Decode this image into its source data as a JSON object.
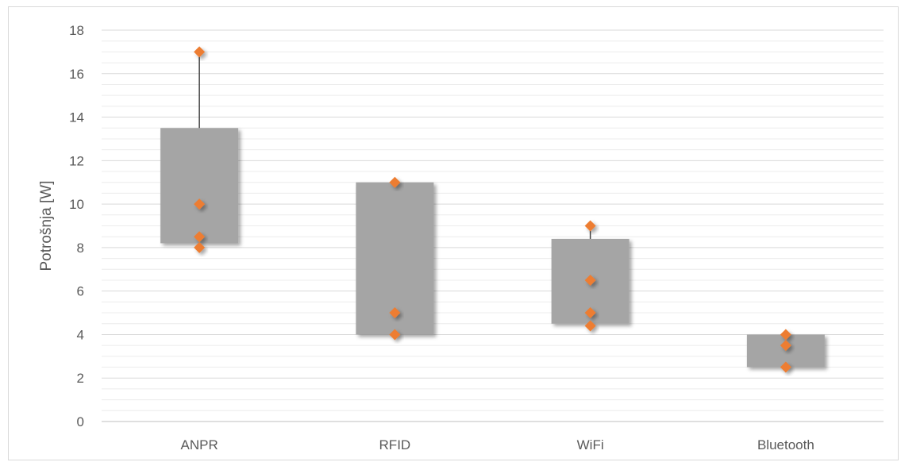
{
  "chart_data": {
    "type": "box",
    "title": "",
    "xlabel": "",
    "ylabel": "Potrošnja [W]",
    "ylim": [
      0,
      18
    ],
    "ytick_step": 2,
    "yminor_step": 0.5,
    "grid": true,
    "legend": "none",
    "categories": [
      "ANPR",
      "RFID",
      "WiFi",
      "Bluetooth"
    ],
    "boxes": [
      {
        "category": "ANPR",
        "low": 8.2,
        "high": 13.5,
        "whisker_max": 17
      },
      {
        "category": "RFID",
        "low": 4.0,
        "high": 11.0,
        "whisker_max": 11
      },
      {
        "category": "WiFi",
        "low": 4.5,
        "high": 8.4,
        "whisker_max": 9
      },
      {
        "category": "Bluetooth",
        "low": 2.5,
        "high": 4.0,
        "whisker_max": 4
      }
    ],
    "points": [
      {
        "category": "ANPR",
        "values": [
          17,
          10,
          8.5,
          8
        ]
      },
      {
        "category": "RFID",
        "values": [
          11,
          5,
          4
        ]
      },
      {
        "category": "WiFi",
        "values": [
          9,
          6.5,
          5,
          4.4
        ]
      },
      {
        "category": "Bluetooth",
        "values": [
          4,
          3.5,
          2.5
        ]
      }
    ],
    "colors": {
      "box": "#a5a5a5",
      "point": "#ed7d31",
      "whisker": "#404040",
      "grid_major": "#d9d9d9",
      "grid_minor": "#ececec",
      "text": "#595959"
    }
  }
}
